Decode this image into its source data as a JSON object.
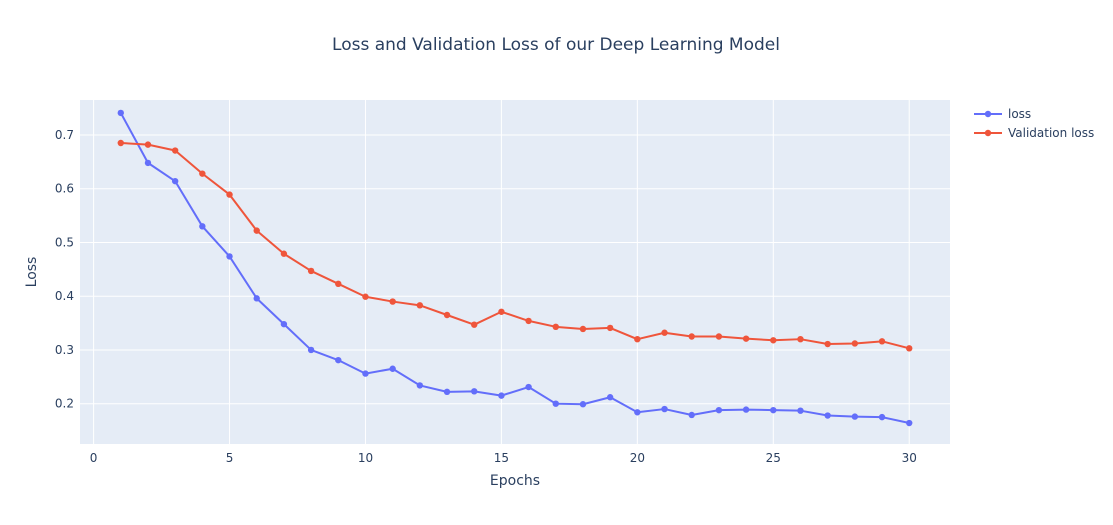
{
  "chart_data": {
    "type": "line",
    "title": "Loss and Validation Loss of our Deep Learning Model",
    "xlabel": "Epochs",
    "ylabel": "Loss",
    "xlim": [
      -0.5,
      31.5
    ],
    "ylim": [
      0.125,
      0.765
    ],
    "xticks": [
      0,
      5,
      10,
      15,
      20,
      25,
      30
    ],
    "yticks": [
      0.2,
      0.3,
      0.4,
      0.5,
      0.6,
      0.7
    ],
    "grid": true,
    "legend": "top-right",
    "x": [
      1,
      2,
      3,
      4,
      5,
      6,
      7,
      8,
      9,
      10,
      11,
      12,
      13,
      14,
      15,
      16,
      17,
      18,
      19,
      20,
      21,
      22,
      23,
      24,
      25,
      26,
      27,
      28,
      29,
      30
    ],
    "series": [
      {
        "name": "loss",
        "color": "#636efa",
        "values": [
          0.741,
          0.648,
          0.614,
          0.53,
          0.474,
          0.396,
          0.348,
          0.3,
          0.281,
          0.256,
          0.265,
          0.234,
          0.222,
          0.223,
          0.215,
          0.231,
          0.2,
          0.199,
          0.212,
          0.184,
          0.19,
          0.179,
          0.188,
          0.189,
          0.188,
          0.187,
          0.178,
          0.176,
          0.175,
          0.164
        ]
      },
      {
        "name": "Validation loss",
        "color": "#ef553b",
        "values": [
          0.685,
          0.682,
          0.671,
          0.628,
          0.589,
          0.522,
          0.479,
          0.447,
          0.423,
          0.399,
          0.39,
          0.383,
          0.365,
          0.347,
          0.371,
          0.354,
          0.343,
          0.339,
          0.341,
          0.32,
          0.332,
          0.325,
          0.325,
          0.321,
          0.318,
          0.32,
          0.311,
          0.312,
          0.316,
          0.303
        ]
      }
    ]
  }
}
